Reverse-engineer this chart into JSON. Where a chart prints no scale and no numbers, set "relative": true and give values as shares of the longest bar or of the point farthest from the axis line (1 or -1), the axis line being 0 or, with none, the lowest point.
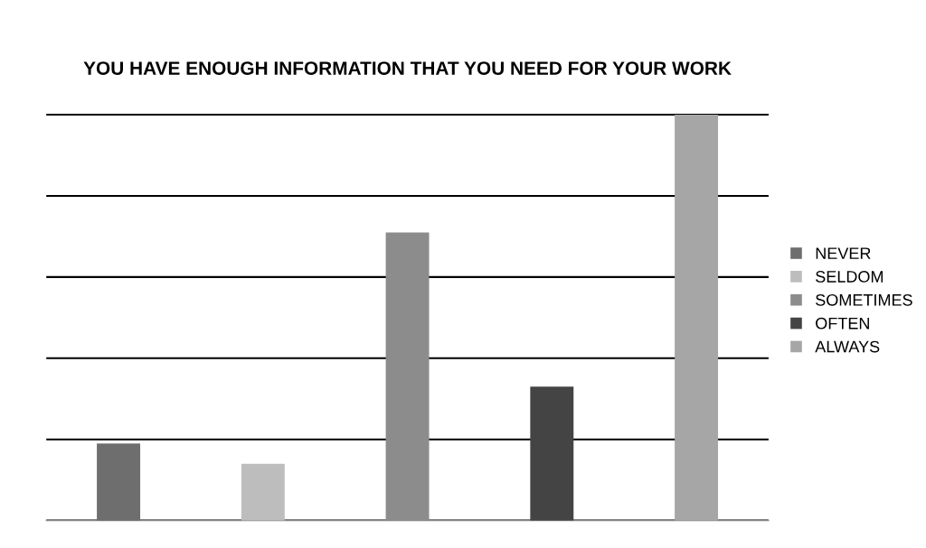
{
  "chart_data": {
    "type": "bar",
    "title": "YOU HAVE ENOUGH INFORMATION THAT YOU NEED FOR YOUR WORK",
    "relative": true,
    "stacked": true,
    "categories": [
      null,
      null,
      null,
      null,
      null
    ],
    "series": [
      {
        "name": "NEVER",
        "color": "#6e6e6e",
        "values": [
          0.19,
          null,
          null,
          null,
          null
        ]
      },
      {
        "name": "SELDOM",
        "color": "#bdbdbd",
        "values": [
          null,
          0.14,
          null,
          null,
          null
        ]
      },
      {
        "name": "SOMETIMES",
        "color": "#8c8c8c",
        "values": [
          null,
          null,
          0.71,
          null,
          null
        ]
      },
      {
        "name": "OFTEN",
        "color": "#444444",
        "values": [
          null,
          null,
          null,
          0.33,
          null
        ]
      },
      {
        "name": "ALWAYS",
        "color": "#a6a6a6",
        "values": [
          null,
          null,
          null,
          null,
          1.0
        ]
      }
    ],
    "grid": "y",
    "legend": "right"
  }
}
